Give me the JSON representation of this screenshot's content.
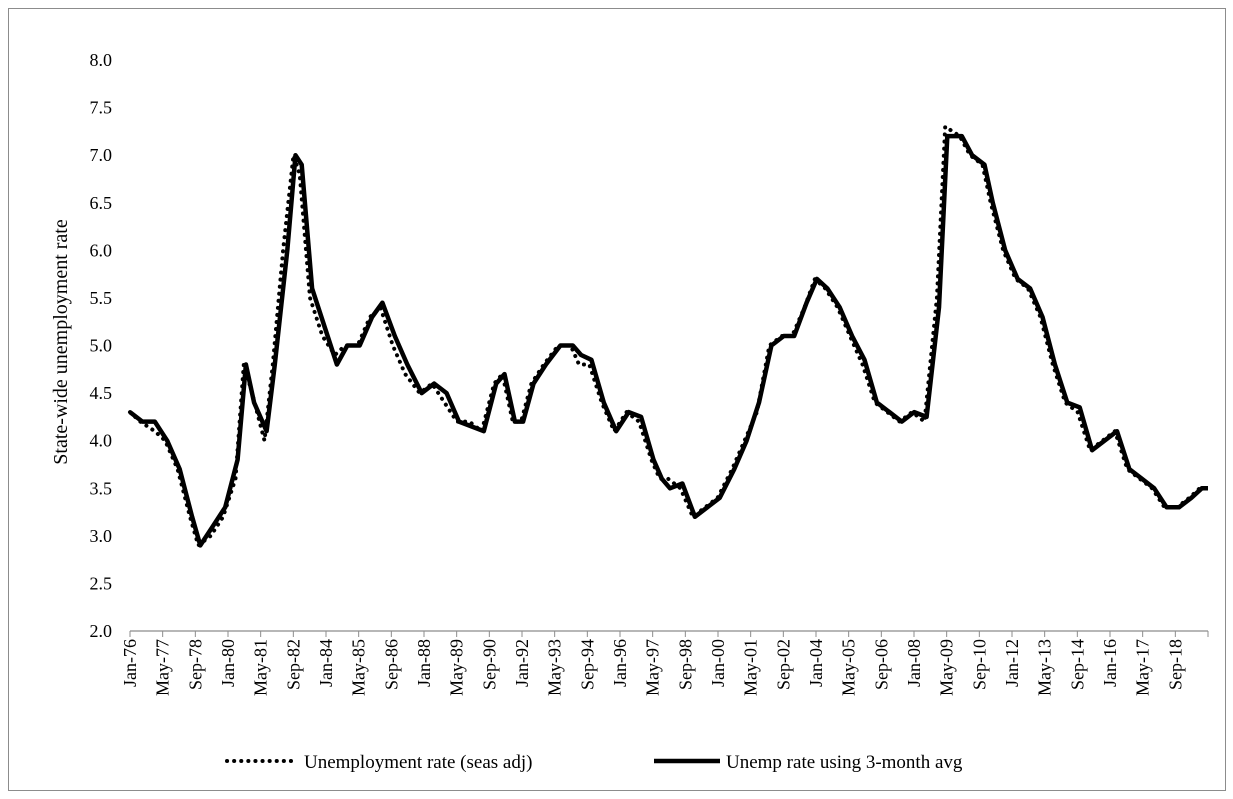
{
  "chart_data": {
    "type": "line",
    "title": "",
    "xlabel": "",
    "ylabel": "State-wide unemployment rate",
    "ylim": [
      2.0,
      8.0
    ],
    "yticks": [
      "2.0",
      "2.5",
      "3.0",
      "3.5",
      "4.0",
      "4.5",
      "5.0",
      "5.5",
      "6.0",
      "6.5",
      "7.0",
      "7.5",
      "8.0"
    ],
    "xlim": [
      "Jan-76",
      "Jun-19"
    ],
    "xtick_labels": [
      "Jan-76",
      "May-77",
      "Sep-78",
      "Jan-80",
      "May-81",
      "Sep-82",
      "Jan-84",
      "May-85",
      "Sep-86",
      "Jan-88",
      "May-89",
      "Sep-90",
      "Jan-92",
      "May-93",
      "Sep-94",
      "Jan-96",
      "May-97",
      "Sep-98",
      "Jan-00",
      "May-01",
      "Sep-02",
      "Jan-04",
      "May-05",
      "Sep-06",
      "Jan-08",
      "May-09",
      "Sep-10",
      "Jan-12",
      "May-13",
      "Sep-14",
      "Jan-16",
      "May-17",
      "Sep-18"
    ],
    "grid": false,
    "legend_position": "bottom",
    "series": [
      {
        "name": "Unemployment rate (seas adj)",
        "style": "dotted",
        "color": "#000000",
        "x": [
          "Jan-76",
          "Jun-76",
          "Jan-77",
          "Jun-77",
          "Dec-77",
          "Jun-78",
          "Oct-78",
          "Apr-79",
          "Oct-79",
          "Apr-80",
          "Aug-80",
          "Dec-80",
          "Jun-81",
          "Oct-81",
          "Mar-82",
          "Aug-82",
          "Nov-82",
          "Apr-83",
          "Oct-83",
          "Apr-84",
          "Sep-84",
          "Mar-85",
          "Sep-85",
          "Feb-86",
          "Aug-86",
          "Feb-87",
          "Sep-87",
          "Mar-88",
          "Sep-88",
          "Mar-89",
          "Sep-89",
          "Mar-90",
          "Sep-90",
          "Jan-91",
          "Jun-91",
          "Oct-91",
          "Mar-92",
          "Sep-92",
          "Apr-93",
          "Oct-93",
          "Feb-94",
          "Jul-94",
          "Jan-95",
          "Jul-95",
          "Jan-96",
          "Jul-96",
          "Jan-97",
          "May-97",
          "Sep-97",
          "Mar-98",
          "Sep-98",
          "Mar-99",
          "Sep-99",
          "Apr-00",
          "Oct-00",
          "Apr-01",
          "Oct-01",
          "Apr-02",
          "Sep-02",
          "Mar-03",
          "Aug-03",
          "Jan-04",
          "Jul-04",
          "Jan-05",
          "Jul-05",
          "Jan-06",
          "Jul-06",
          "Jan-07",
          "Jul-07",
          "Jan-08",
          "Jul-08",
          "Nov-08",
          "Jun-09",
          "Nov-09",
          "May-10",
          "Sep-10",
          "Mar-11",
          "Sep-11",
          "Mar-12",
          "Sep-12",
          "Mar-13",
          "Sep-13",
          "Mar-14",
          "Sep-14",
          "Mar-15",
          "Sep-15",
          "Mar-16",
          "Sep-16",
          "Mar-17",
          "Sep-17",
          "Mar-18",
          "Sep-18",
          "Feb-19",
          "Jun-19"
        ],
        "y": [
          4.3,
          4.2,
          4.1,
          4.0,
          3.7,
          3.2,
          2.9,
          3.0,
          3.2,
          3.6,
          4.8,
          4.5,
          4.0,
          4.8,
          6.0,
          7.0,
          6.8,
          5.5,
          5.1,
          4.9,
          5.0,
          5.0,
          5.3,
          5.4,
          5.0,
          4.7,
          4.5,
          4.6,
          4.4,
          4.2,
          4.2,
          4.1,
          4.6,
          4.7,
          4.2,
          4.2,
          4.6,
          4.8,
          5.0,
          5.0,
          4.8,
          4.8,
          4.4,
          4.1,
          4.3,
          4.2,
          3.8,
          3.6,
          3.6,
          3.5,
          3.2,
          3.3,
          3.4,
          3.7,
          4.0,
          4.3,
          5.0,
          5.1,
          5.1,
          5.4,
          5.7,
          5.6,
          5.4,
          5.1,
          4.8,
          4.4,
          4.3,
          4.2,
          4.3,
          4.2,
          5.5,
          7.3,
          7.2,
          7.0,
          6.9,
          6.5,
          6.0,
          5.7,
          5.6,
          5.3,
          4.8,
          4.4,
          4.3,
          3.9,
          4.0,
          4.1,
          3.7,
          3.6,
          3.5,
          3.3,
          3.3,
          3.4,
          3.5,
          3.5
        ]
      },
      {
        "name": "Unemp rate using 3-month avg",
        "style": "solid",
        "color": "#000000",
        "x": [
          "Jan-76",
          "Jul-76",
          "Jan-77",
          "Jul-77",
          "Jan-78",
          "Jul-78",
          "Nov-78",
          "May-79",
          "Nov-79",
          "May-80",
          "Sep-80",
          "Jan-81",
          "Jul-81",
          "Nov-81",
          "May-82",
          "Sep-82",
          "Dec-82",
          "May-83",
          "Nov-83",
          "May-84",
          "Oct-84",
          "Apr-85",
          "Oct-85",
          "Mar-86",
          "Sep-86",
          "Mar-87",
          "Oct-87",
          "Apr-88",
          "Oct-88",
          "Apr-89",
          "Oct-89",
          "Apr-90",
          "Oct-90",
          "Feb-91",
          "Jul-91",
          "Nov-91",
          "Apr-92",
          "Oct-92",
          "May-93",
          "Nov-93",
          "Mar-94",
          "Aug-94",
          "Feb-95",
          "Aug-95",
          "Feb-96",
          "Aug-96",
          "Feb-97",
          "Jun-97",
          "Oct-97",
          "Apr-98",
          "Oct-98",
          "Apr-99",
          "Oct-99",
          "May-00",
          "Nov-00",
          "May-01",
          "Nov-01",
          "May-02",
          "Oct-02",
          "Apr-03",
          "Sep-03",
          "Feb-04",
          "Aug-04",
          "Feb-05",
          "Aug-05",
          "Feb-06",
          "Aug-06",
          "Feb-07",
          "Aug-07",
          "Feb-08",
          "Aug-08",
          "Dec-08",
          "Jul-09",
          "Dec-09",
          "Jun-10",
          "Oct-10",
          "Apr-11",
          "Oct-11",
          "Apr-12",
          "Oct-12",
          "Apr-13",
          "Oct-13",
          "Apr-14",
          "Oct-14",
          "Apr-15",
          "Oct-15",
          "Apr-16",
          "Oct-16",
          "Apr-17",
          "Oct-17",
          "Apr-18",
          "Oct-18",
          "Mar-19",
          "Jun-19"
        ],
        "y": [
          4.3,
          4.2,
          4.2,
          4.0,
          3.7,
          3.2,
          2.9,
          3.1,
          3.3,
          3.8,
          4.8,
          4.4,
          4.1,
          4.8,
          6.0,
          7.0,
          6.9,
          5.6,
          5.2,
          4.8,
          5.0,
          5.0,
          5.3,
          5.45,
          5.1,
          4.8,
          4.5,
          4.6,
          4.5,
          4.2,
          4.15,
          4.1,
          4.6,
          4.7,
          4.2,
          4.2,
          4.6,
          4.8,
          5.0,
          5.0,
          4.9,
          4.85,
          4.4,
          4.1,
          4.3,
          4.25,
          3.8,
          3.6,
          3.5,
          3.55,
          3.2,
          3.3,
          3.4,
          3.7,
          4.0,
          4.4,
          5.0,
          5.1,
          5.1,
          5.45,
          5.7,
          5.6,
          5.4,
          5.1,
          4.85,
          4.4,
          4.3,
          4.2,
          4.3,
          4.25,
          5.4,
          7.2,
          7.2,
          7.0,
          6.9,
          6.5,
          6.0,
          5.7,
          5.6,
          5.3,
          4.8,
          4.4,
          4.35,
          3.9,
          4.0,
          4.1,
          3.7,
          3.6,
          3.5,
          3.3,
          3.3,
          3.4,
          3.5,
          3.5
        ]
      }
    ]
  }
}
